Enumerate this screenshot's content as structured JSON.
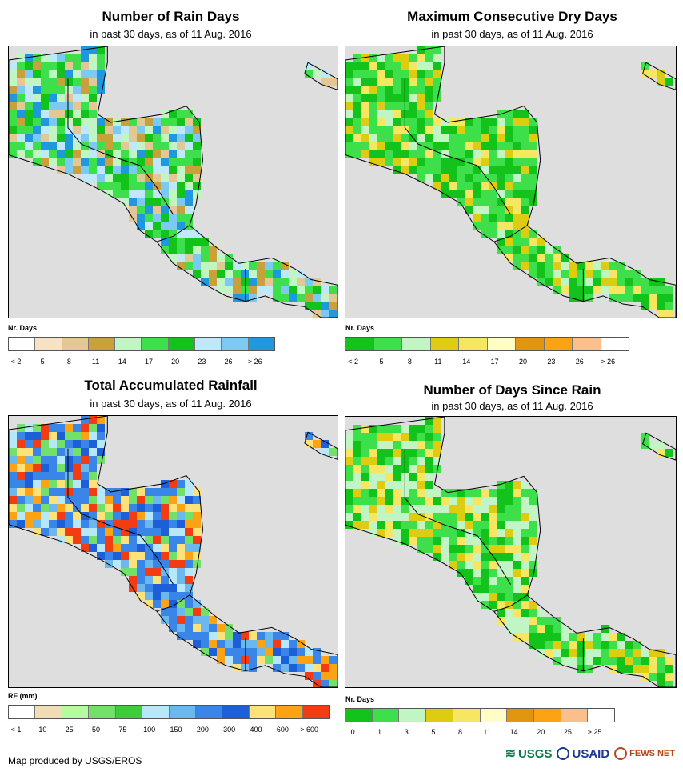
{
  "panels": [
    {
      "title": "Number of Rain Days",
      "subtitle": "in past 30 days, as of 11 Aug. 2016",
      "legend_label": "Nr. Days",
      "legend_colors": [
        "#ffffff",
        "#f7e2c3",
        "#e3c795",
        "#c9a13b",
        "#c2f5c4",
        "#3de04a",
        "#13c21a",
        "#bfe9fa",
        "#7ccaf2",
        "#1f98dd"
      ],
      "legend_ticks": [
        "< 2",
        "5",
        "8",
        "11",
        "14",
        "17",
        "20",
        "23",
        "26",
        "> 26"
      ],
      "land_palette": [
        "#13c21a",
        "#3de04a",
        "#3de04a",
        "#c2f5c4",
        "#bfe9fa",
        "#7ccaf2",
        "#c9a13b",
        "#e3c795",
        "#1f98dd"
      ]
    },
    {
      "title": "Maximum Consecutive Dry Days",
      "subtitle": "in past 30 days, as of 11 Aug. 2016",
      "legend_label": "Nr. Days",
      "legend_colors": [
        "#13c21a",
        "#3de04a",
        "#c2f5c4",
        "#ddcc12",
        "#f7e661",
        "#fffcc4",
        "#e0960e",
        "#fba313",
        "#fbbf8c",
        "#ffffff"
      ],
      "legend_ticks": [
        "< 2",
        "5",
        "8",
        "11",
        "14",
        "17",
        "20",
        "23",
        "26",
        "> 26"
      ],
      "land_palette": [
        "#13c21a",
        "#13c21a",
        "#3de04a",
        "#3de04a",
        "#3de04a",
        "#c2f5c4",
        "#ddcc12",
        "#f7e661"
      ]
    },
    {
      "title": "Total Accumulated Rainfall",
      "subtitle": "in past 30 days, as of 11 Aug. 2016",
      "legend_label": "RF (mm)",
      "legend_colors": [
        "#ffffff",
        "#f0dcb5",
        "#b5fc9e",
        "#73e06a",
        "#3ccd3c",
        "#b7e8fa",
        "#6bb8ee",
        "#3a86e8",
        "#1c5fd8",
        "#fde27a",
        "#fba313",
        "#f43c12"
      ],
      "legend_ticks": [
        "< 1",
        "10",
        "25",
        "50",
        "75",
        "100",
        "150",
        "200",
        "300",
        "400",
        "600",
        "> 600"
      ],
      "land_palette": [
        "#3a86e8",
        "#1c5fd8",
        "#6bb8ee",
        "#3a86e8",
        "#fba313",
        "#fde27a",
        "#73e06a",
        "#b7e8fa",
        "#f43c12"
      ]
    },
    {
      "title": "Number of Days Since Rain",
      "subtitle": "in past 30 days, as of 11 Aug. 2016",
      "legend_label": "Nr. Days",
      "legend_colors": [
        "#13c21a",
        "#3de04a",
        "#c2f5c4",
        "#ddcc12",
        "#f7e661",
        "#fffcc4",
        "#e0960e",
        "#fba313",
        "#fbbf8c",
        "#ffffff"
      ],
      "legend_ticks": [
        "0",
        "1",
        "3",
        "5",
        "8",
        "11",
        "14",
        "20",
        "25",
        "> 25"
      ],
      "land_palette": [
        "#13c21a",
        "#c2f5c4",
        "#3de04a",
        "#13c21a",
        "#c2f5c4",
        "#ddcc12",
        "#f7e661",
        "#3de04a"
      ]
    }
  ],
  "footer": {
    "credit": "Map produced by USGS/EROS",
    "logos": [
      "USGS",
      "USAID",
      "FEWS NET"
    ]
  }
}
